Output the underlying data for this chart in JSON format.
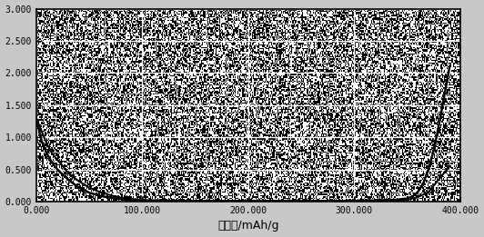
{
  "title": "",
  "xlabel": "比容量/mAh/g",
  "ylabel": "",
  "xlim": [
    0,
    400
  ],
  "ylim": [
    0,
    3.0
  ],
  "xticks": [
    0,
    100,
    200,
    300,
    400
  ],
  "yticks": [
    0.0,
    0.5,
    1.0,
    1.5,
    2.0,
    2.5,
    3.0
  ],
  "xtick_labels": [
    "0.000",
    "100.000",
    "200.000",
    "300.000",
    "400.000"
  ],
  "ytick_labels": [
    "0.000",
    "0.500",
    "1.000",
    "1.500",
    "2.000",
    "2.500",
    "3.000"
  ],
  "bg_noise_density": 0.5,
  "line_color": "#000000",
  "grid_color": "#ffffff",
  "fig_bg_color": "#c8c8c8",
  "curve1_x": [
    0,
    5,
    10,
    15,
    20,
    25,
    30,
    35,
    40,
    50,
    60,
    70,
    80,
    90,
    100,
    120,
    150,
    200,
    250,
    300,
    320,
    340,
    350,
    360,
    370,
    380,
    390
  ],
  "curve1_y": [
    1.3,
    1.1,
    0.9,
    0.75,
    0.65,
    0.55,
    0.45,
    0.38,
    0.32,
    0.22,
    0.15,
    0.1,
    0.06,
    0.04,
    0.025,
    0.015,
    0.01,
    0.008,
    0.008,
    0.01,
    0.015,
    0.02,
    0.03,
    0.07,
    0.15,
    0.35,
    0.55
  ],
  "curve2_x": [
    0,
    5,
    10,
    15,
    20,
    25,
    30,
    35,
    40,
    45,
    50,
    60,
    70,
    80,
    85,
    90,
    95,
    100,
    120,
    150,
    200,
    250,
    300,
    320,
    340,
    350,
    355,
    360,
    365,
    370,
    375,
    380,
    385,
    390
  ],
  "curve2_y": [
    1.3,
    0.95,
    0.75,
    0.6,
    0.5,
    0.42,
    0.35,
    0.28,
    0.22,
    0.18,
    0.14,
    0.09,
    0.06,
    0.04,
    0.03,
    0.025,
    0.02,
    0.015,
    0.012,
    0.01,
    0.008,
    0.008,
    0.012,
    0.018,
    0.03,
    0.05,
    0.08,
    0.15,
    0.28,
    0.5,
    0.8,
    1.2,
    1.65,
    2.1
  ],
  "figsize": [
    5.32,
    2.61
  ],
  "dpi": 100
}
